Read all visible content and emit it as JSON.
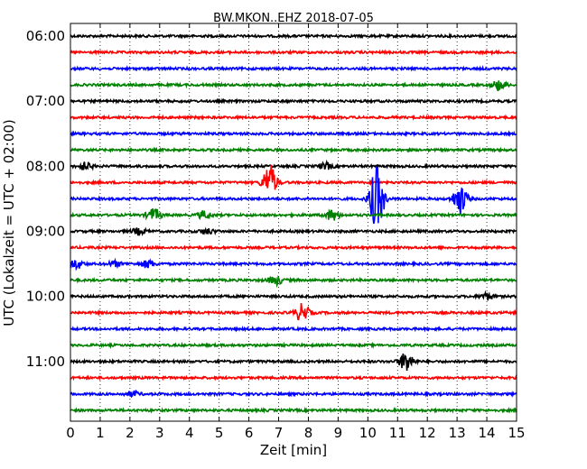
{
  "chart_data": {
    "type": "line",
    "title": "BW.MKON..EHZ 2018-07-05",
    "xlabel": "Zeit  [min]",
    "ylabel": "UTC (Lokalzeit = UTC + 02:00)",
    "xlim": [
      0,
      15
    ],
    "x_ticks": [
      "0",
      "1",
      "2",
      "3",
      "4",
      "5",
      "6",
      "7",
      "8",
      "9",
      "10",
      "11",
      "12",
      "13",
      "14",
      "15"
    ],
    "y_ticks": [
      "06:00",
      "07:00",
      "08:00",
      "09:00",
      "10:00",
      "11:00"
    ],
    "grid": "vertical dotted",
    "trace_start_times": [
      "06:00",
      "06:15",
      "06:30",
      "06:45",
      "07:00",
      "07:15",
      "07:30",
      "07:45",
      "08:00",
      "08:15",
      "08:30",
      "08:45",
      "09:00",
      "09:15",
      "09:30",
      "09:45",
      "10:00",
      "10:15",
      "10:30",
      "10:45",
      "11:00",
      "11:15",
      "11:30",
      "11:45"
    ],
    "colors": [
      "#000000",
      "#ff0000",
      "#0000ff",
      "#008000"
    ],
    "events": [
      {
        "trace": "06:45",
        "minute": 14.4,
        "amplitude": 0.4
      },
      {
        "trace": "08:00",
        "minute": 0.5,
        "amplitude": 0.3
      },
      {
        "trace": "08:00",
        "minute": 8.6,
        "amplitude": 0.25
      },
      {
        "trace": "08:15",
        "minute": 6.7,
        "amplitude": 1.4
      },
      {
        "trace": "08:30",
        "minute": 10.3,
        "amplitude": 2.6
      },
      {
        "trace": "08:30",
        "minute": 13.1,
        "amplitude": 1.2
      },
      {
        "trace": "08:45",
        "minute": 2.8,
        "amplitude": 0.5
      },
      {
        "trace": "08:45",
        "minute": 4.5,
        "amplitude": 0.3
      },
      {
        "trace": "08:45",
        "minute": 8.8,
        "amplitude": 0.4
      },
      {
        "trace": "09:00",
        "minute": 2.3,
        "amplitude": 0.25
      },
      {
        "trace": "09:00",
        "minute": 4.6,
        "amplitude": 0.2
      },
      {
        "trace": "09:30",
        "minute": 0.2,
        "amplitude": 0.35
      },
      {
        "trace": "09:30",
        "minute": 1.5,
        "amplitude": 0.2
      },
      {
        "trace": "09:30",
        "minute": 2.6,
        "amplitude": 0.3
      },
      {
        "trace": "09:45",
        "minute": 6.9,
        "amplitude": 0.35
      },
      {
        "trace": "10:00",
        "minute": 14.0,
        "amplitude": 0.25
      },
      {
        "trace": "10:15",
        "minute": 7.8,
        "amplitude": 0.7
      },
      {
        "trace": "11:00",
        "minute": 11.3,
        "amplitude": 0.8
      },
      {
        "trace": "11:30",
        "minute": 2.1,
        "amplitude": 0.2
      }
    ]
  }
}
